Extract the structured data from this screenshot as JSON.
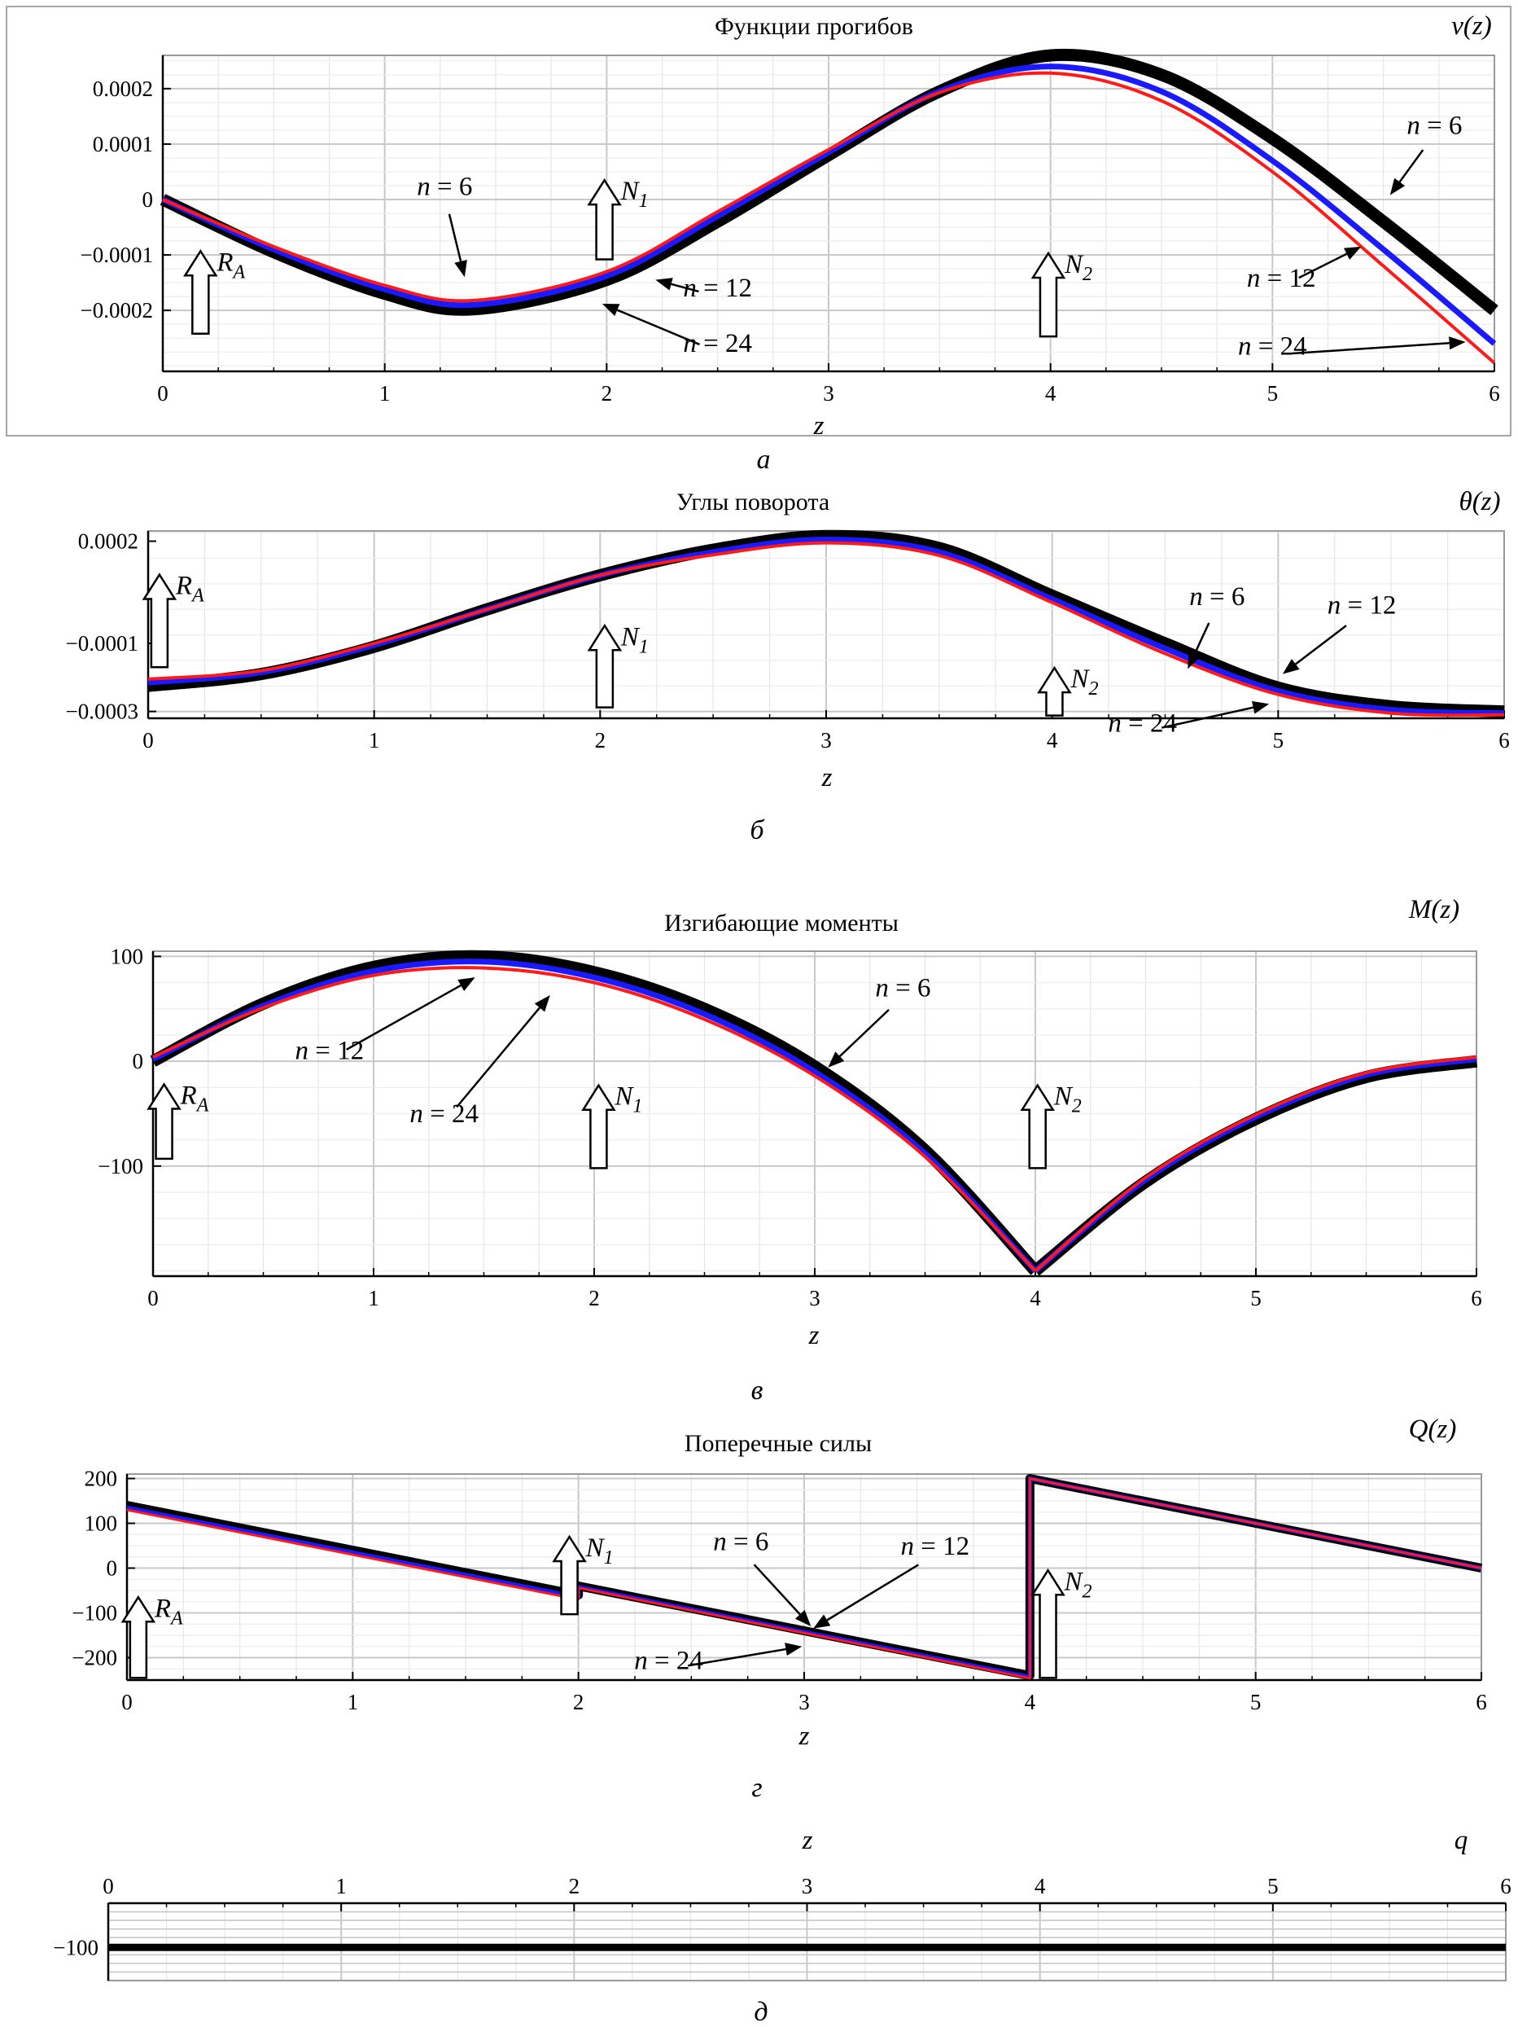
{
  "chart_data": [
    {
      "panel": "a",
      "type": "line",
      "title": "Функции прогибов",
      "ylabel": "v(z)",
      "xlabel": "z",
      "xlim": [
        0,
        6
      ],
      "ylim": [
        -0.00031,
        0.00026
      ],
      "x_ticks": [
        "0",
        "1",
        "2",
        "3",
        "4",
        "5",
        "6"
      ],
      "y_ticks": [
        {
          "v": 0.0002,
          "label": "0.0002"
        },
        {
          "v": 0.0001,
          "label": "0.0001"
        },
        {
          "v": 0,
          "label": "0"
        },
        {
          "v": -0.0001,
          "label": "−0.0001"
        },
        {
          "v": -0.0002,
          "label": "−0.0002"
        }
      ],
      "grid": true,
      "x": [
        0,
        0.5,
        1,
        1.4,
        2,
        2.5,
        3,
        3.5,
        4,
        4.5,
        5,
        5.5,
        6
      ],
      "series": [
        {
          "name": "n = 6",
          "color": "#000000",
          "values": [
            0,
            -9.5e-05,
            -0.00017,
            -0.000198,
            -0.000145,
            -4e-05,
            8e-05,
            0.000195,
            0.00026,
            0.000225,
            0.00011,
            -4e-05,
            -0.0002
          ]
        },
        {
          "name": "n = 12",
          "color": "#1a1aff",
          "values": [
            0,
            -9e-05,
            -0.000162,
            -0.00019,
            -0.000138,
            -3e-05,
            8.5e-05,
            0.000195,
            0.00024,
            0.000195,
            7e-05,
            -9e-05,
            -0.00026
          ]
        },
        {
          "name": "n = 24",
          "color": "#ff1a1a",
          "values": [
            0,
            -8.5e-05,
            -0.000155,
            -0.000182,
            -0.00013,
            -2.2e-05,
            9e-05,
            0.000193,
            0.000228,
            0.000178,
            5e-05,
            -0.00012,
            -0.000295
          ]
        }
      ],
      "annotations": [
        {
          "text": "n = 6",
          "x": 1.27,
          "y": 8e-06,
          "ax": 1.36,
          "ay": -0.00014
        },
        {
          "text": "n = 12",
          "x": 2.5,
          "y": -0.000175,
          "ax": 2.22,
          "ay": -0.000145
        },
        {
          "text": "n = 24",
          "x": 2.5,
          "y": -0.000275,
          "ax": 1.98,
          "ay": -0.000188
        },
        {
          "text": "n = 6",
          "x": 5.73,
          "y": 0.000118,
          "ax": 5.53,
          "ay": 8e-06
        },
        {
          "text": "n = 12",
          "x": 5.04,
          "y": -0.000157,
          "ax": 5.4,
          "ay": -8.5e-05
        },
        {
          "text": "n = 24",
          "x": 5.0,
          "y": -0.00028,
          "ax": 5.87,
          "ay": -0.000257
        }
      ],
      "supports": [
        {
          "label": "R",
          "sub": "A",
          "x": 0.17,
          "ybot": -0.000242,
          "ytop": -9.3e-05
        },
        {
          "label": "N",
          "sub": "1",
          "x": 1.99,
          "ybot": -0.000108,
          "ytop": 3.5e-05
        },
        {
          "label": "N",
          "sub": "2",
          "x": 3.99,
          "ybot": -0.000247,
          "ytop": -9.7e-05
        }
      ],
      "caption": "а"
    },
    {
      "panel": "б",
      "type": "line",
      "title": "Углы поворота",
      "ylabel": "θ(z)",
      "xlabel": "z",
      "xlim": [
        0,
        6
      ],
      "ylim": [
        -0.00032,
        0.00023
      ],
      "x_ticks": [
        "0",
        "1",
        "2",
        "3",
        "4",
        "5",
        "6"
      ],
      "y_ticks": [
        {
          "v": 0.0002,
          "label": "0.0002"
        },
        {
          "v": -0.0001,
          "label": "−0.0001"
        },
        {
          "v": -0.0003,
          "label": "−0.0003"
        }
      ],
      "grid": true,
      "x": [
        0,
        0.5,
        1,
        1.5,
        2,
        2.5,
        3,
        3.5,
        4,
        4.5,
        5,
        5.5,
        6
      ],
      "series": [
        {
          "name": "n = 6",
          "color": "#000000",
          "values": [
            -0.000225,
            -0.00019,
            -0.00011,
            0,
            0.0001,
            0.000175,
            0.000215,
            0.00018,
            4e-05,
            -0.0001,
            -0.00023,
            -0.000285,
            -0.0003
          ]
        },
        {
          "name": "n = 12",
          "color": "#1a1aff",
          "values": [
            -0.000215,
            -0.000185,
            -0.000105,
            0,
            0.0001,
            0.000168,
            0.000205,
            0.000168,
            3e-05,
            -0.000115,
            -0.00024,
            -0.000295,
            -0.000305
          ]
        },
        {
          "name": "n = 24",
          "color": "#ff1a1a",
          "values": [
            -0.000205,
            -0.00018,
            -0.0001,
            0,
            0.0001,
            0.00016,
            0.000195,
            0.000158,
            2e-05,
            -0.00013,
            -0.00025,
            -0.000305,
            -0.00031
          ]
        }
      ],
      "annotations": [
        {
          "text": "n = 6",
          "x": 4.73,
          "y": 1.2e-05,
          "ax": 4.6,
          "ay": -0.000175
        },
        {
          "text": "n = 12",
          "x": 5.37,
          "y": -1.3e-05,
          "ax": 5.02,
          "ay": -0.00019
        },
        {
          "text": "n = 24",
          "x": 4.4,
          "y": -0.00036,
          "ax": 4.96,
          "ay": -0.000278
        }
      ],
      "supports": [
        {
          "label": "R",
          "sub": "A",
          "x": 0.05,
          "ybot": -0.00017,
          "ytop": 0.000102
        },
        {
          "label": "N",
          "sub": "1",
          "x": 2.02,
          "ybot": -0.000288,
          "ytop": -4.8e-05
        },
        {
          "label": "N",
          "sub": "2",
          "x": 4.01,
          "ybot": -0.000312,
          "ytop": -0.000172
        }
      ],
      "caption": "б"
    },
    {
      "panel": "в",
      "type": "line",
      "title": "Изгибающие моменты",
      "ylabel": "M(z)",
      "xlabel": "z",
      "xlim": [
        0,
        6
      ],
      "ylim": [
        -205,
        105
      ],
      "x_ticks": [
        "0",
        "1",
        "2",
        "3",
        "4",
        "5",
        "6"
      ],
      "y_ticks": [
        {
          "v": 100,
          "label": "100"
        },
        {
          "v": 0,
          "label": "0"
        },
        {
          "v": -100,
          "label": "−100"
        }
      ],
      "grid": true,
      "x": [
        0,
        0.5,
        1,
        1.5,
        2,
        2.5,
        3,
        3.5,
        4,
        4.5,
        5,
        5.5,
        6
      ],
      "series": [
        {
          "name": "n = 6",
          "color": "#000000",
          "values": [
            0,
            55,
            90,
            100,
            85,
            50,
            -5,
            -85,
            -200,
            -115,
            -55,
            -15,
            0
          ]
        },
        {
          "name": "n = 12",
          "color": "#1a1aff",
          "values": [
            2,
            53,
            86,
            95,
            80,
            45,
            -10,
            -88,
            -200,
            -113,
            -53,
            -13,
            2
          ]
        },
        {
          "name": "n = 24",
          "color": "#ff1a1a",
          "values": [
            4,
            51,
            82,
            89,
            75,
            40,
            -14,
            -91,
            -200,
            -111,
            -51,
            -11,
            4
          ]
        }
      ],
      "annotations": [
        {
          "text": "n = 12",
          "x": 0.8,
          "y": 2,
          "ax": 1.46,
          "ay": 80
        },
        {
          "text": "n = 24",
          "x": 1.32,
          "y": -58,
          "ax": 1.8,
          "ay": 63
        },
        {
          "text": "n = 6",
          "x": 3.4,
          "y": 62,
          "ax": 3.06,
          "ay": -6
        }
      ],
      "supports": [
        {
          "label": "R",
          "sub": "A",
          "x": 0.05,
          "ybot": -93,
          "ytop": -22
        },
        {
          "label": "N",
          "sub": "1",
          "x": 2.02,
          "ybot": -102,
          "ytop": -23
        },
        {
          "label": "N",
          "sub": "2",
          "x": 4.01,
          "ybot": -102,
          "ytop": -23
        }
      ],
      "caption": "в"
    },
    {
      "panel": "г",
      "type": "line",
      "title": "Поперечные силы",
      "ylabel": "Q(z)",
      "xlabel": "z",
      "xlim": [
        0,
        6
      ],
      "ylim": [
        -250,
        210
      ],
      "x_ticks": [
        "0",
        "1",
        "2",
        "3",
        "4",
        "5",
        "6"
      ],
      "y_ticks": [
        {
          "v": 200,
          "label": "200"
        },
        {
          "v": 100,
          "label": "100"
        },
        {
          "v": 0,
          "label": "0"
        },
        {
          "v": -100,
          "label": "−100"
        },
        {
          "v": -200,
          "label": "−200"
        }
      ],
      "grid": true,
      "x": [
        0,
        2,
        2,
        4,
        4,
        6
      ],
      "series": [
        {
          "name": "n = 6",
          "color": "#000000",
          "values": [
            140,
            -60,
            -40,
            -240,
            200,
            0
          ]
        },
        {
          "name": "n = 12",
          "color": "#1a1aff",
          "values": [
            135,
            -65,
            -42,
            -243,
            200,
            0
          ]
        },
        {
          "name": "n = 24",
          "color": "#ff1a1a",
          "values": [
            130,
            -70,
            -44,
            -246,
            200,
            0
          ]
        }
      ],
      "annotations": [
        {
          "text": "n = 6",
          "x": 2.72,
          "y": 40,
          "ax": 3.03,
          "ay": -130
        },
        {
          "text": "n = 12",
          "x": 3.58,
          "y": 30,
          "ax": 3.04,
          "ay": -135
        },
        {
          "text": "n = 24",
          "x": 2.4,
          "y": -225,
          "ax": 2.99,
          "ay": -175
        }
      ],
      "supports": [
        {
          "label": "R",
          "sub": "A",
          "x": 0.05,
          "ybot": -245,
          "ytop": -65
        },
        {
          "label": "N",
          "sub": "1",
          "x": 1.96,
          "ybot": -103,
          "ytop": 70
        },
        {
          "label": "N",
          "sub": "2",
          "x": 4.08,
          "ybot": -245,
          "ytop": -5
        }
      ],
      "caption": "г"
    },
    {
      "panel": "д",
      "type": "line",
      "ylabel": "q",
      "xlabel": "z",
      "xlim": [
        0,
        6
      ],
      "ylim": [
        -130,
        -60
      ],
      "x_ticks": [
        "0",
        "1",
        "2",
        "3",
        "4",
        "5",
        "6"
      ],
      "y_ticks": [
        {
          "v": -100,
          "label": "−100"
        }
      ],
      "x_axis_position": "top",
      "grid": true,
      "x": [
        0,
        6
      ],
      "series": [
        {
          "name": "q",
          "color": "#000000",
          "values": [
            -100,
            -100
          ]
        }
      ],
      "caption": "д"
    }
  ]
}
